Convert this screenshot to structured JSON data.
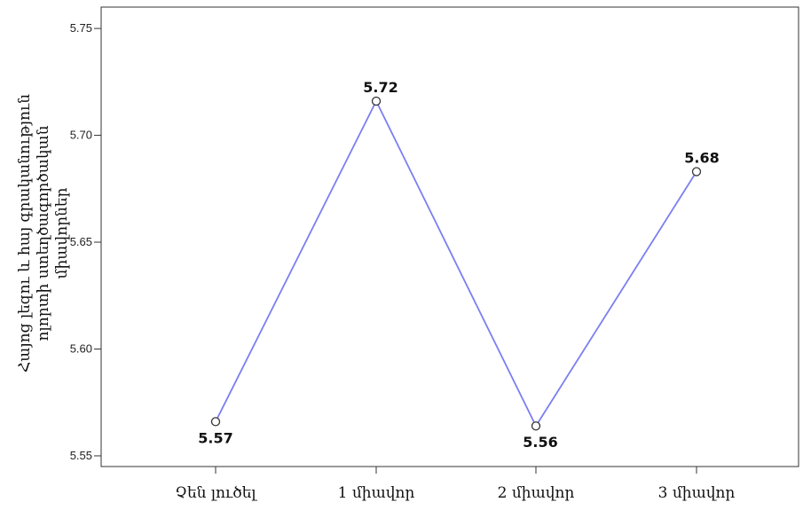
{
  "chart_data": {
    "type": "line",
    "title": "",
    "xlabel": "",
    "ylabel_lines": [
      "Հայոց լեզու և հայ գրականություն",
      "ոլորտի ստեղծագործական",
      "միավորներ"
    ],
    "categories": [
      "Չեն լուծել",
      "1 միավոր",
      "2 միավոր",
      "3 միավոր"
    ],
    "values": [
      5.566,
      5.716,
      5.564,
      5.683
    ],
    "data_labels": [
      "5.57",
      "5.72",
      "5.56",
      "5.68"
    ],
    "ylim": [
      5.545,
      5.76
    ],
    "yticks": [
      5.55,
      5.6,
      5.65,
      5.7,
      5.75
    ],
    "ytick_labels": [
      "5.55",
      "5.60",
      "5.65",
      "5.70",
      "5.75"
    ],
    "grid": false,
    "line_color": "#7b7ff2",
    "marker": "open-circle"
  }
}
